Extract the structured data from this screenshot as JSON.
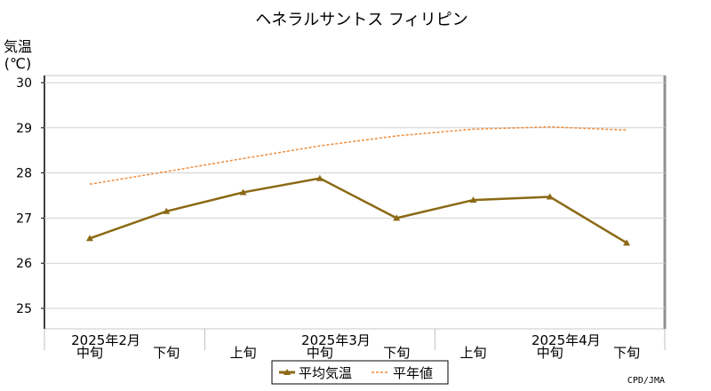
{
  "chart_data": {
    "type": "line",
    "title": "ヘネラルサントス フィリピン",
    "ylabel_line1": "気温",
    "ylabel_line2": "(℃)",
    "ylim": [
      25,
      30
    ],
    "yticks": [
      "25",
      "26",
      "27",
      "28",
      "29",
      "30"
    ],
    "grid": true,
    "legend_position": "bottom-center",
    "period_labels": [
      {
        "text": "中旬",
        "slot": 0
      },
      {
        "text": "下旬",
        "slot": 1
      },
      {
        "text": "上旬",
        "slot": 2
      },
      {
        "text": "中旬",
        "slot": 3
      },
      {
        "text": "下旬",
        "slot": 4
      },
      {
        "text": "上旬",
        "slot": 5
      },
      {
        "text": "中旬",
        "slot": 6
      },
      {
        "text": "下旬",
        "slot": 7
      }
    ],
    "month_labels": [
      {
        "text": "2025年2月",
        "slot": 0
      },
      {
        "text": "2025年3月",
        "slot": 3
      },
      {
        "text": "2025年4月",
        "slot": 6
      }
    ],
    "series": [
      {
        "name": "平均気温",
        "color": "#8b6914",
        "style": "solid-triangle",
        "values": [
          26.55,
          27.15,
          27.57,
          27.88,
          27.0,
          27.4,
          27.47,
          26.45
        ]
      },
      {
        "name": "平年値",
        "color": "#f08c3c",
        "style": "dashed",
        "values": [
          27.75,
          28.03,
          28.32,
          28.6,
          28.82,
          28.97,
          29.02,
          28.95
        ]
      }
    ],
    "credit": "CPD/JMA"
  }
}
